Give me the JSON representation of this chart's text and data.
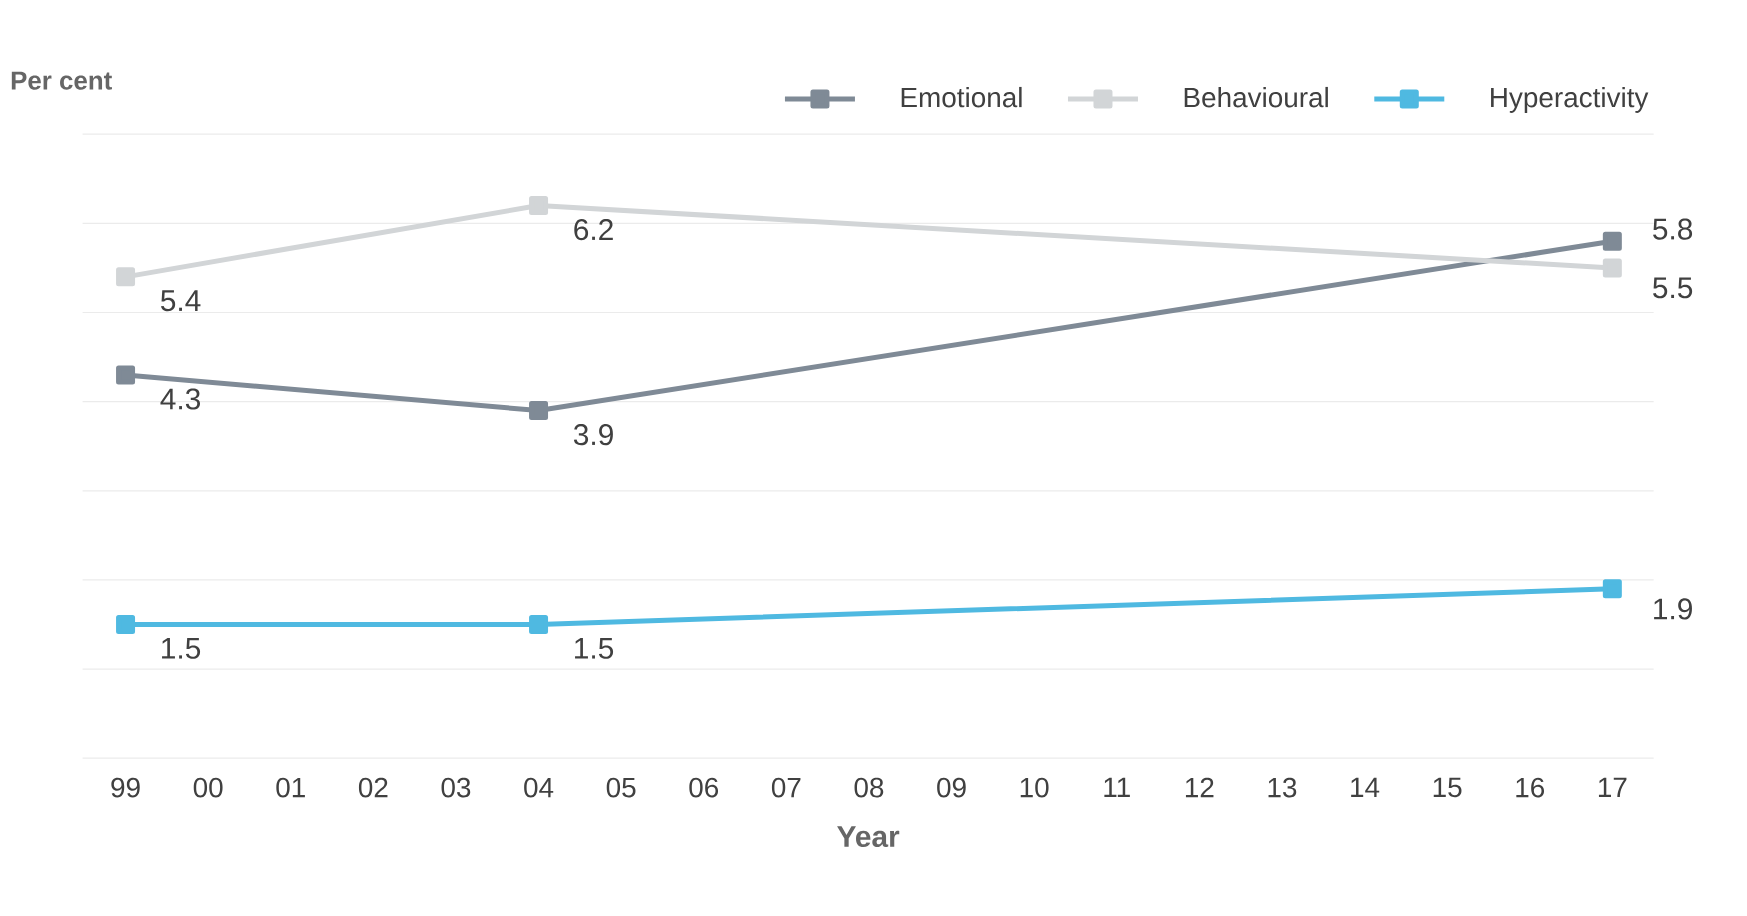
{
  "chart_data": {
    "type": "line",
    "ylabel": "Per cent",
    "xlabel": "Year",
    "categories": [
      "99",
      "00",
      "01",
      "02",
      "03",
      "04",
      "05",
      "06",
      "07",
      "08",
      "09",
      "10",
      "11",
      "12",
      "13",
      "14",
      "15",
      "16",
      "17"
    ],
    "series": [
      {
        "name": "Emotional",
        "color": "#7f8a96",
        "values": [
          4.3,
          null,
          null,
          null,
          null,
          3.9,
          null,
          null,
          null,
          null,
          null,
          null,
          null,
          null,
          null,
          null,
          null,
          null,
          5.8
        ]
      },
      {
        "name": "Behavioural",
        "color": "#d2d5d7",
        "values": [
          5.4,
          null,
          null,
          null,
          null,
          6.2,
          null,
          null,
          null,
          null,
          null,
          null,
          null,
          null,
          null,
          null,
          null,
          null,
          5.5
        ]
      },
      {
        "name": "Hyperactivity",
        "color": "#4fb9e1",
        "values": [
          1.5,
          null,
          null,
          null,
          null,
          1.5,
          null,
          null,
          null,
          null,
          null,
          null,
          null,
          null,
          null,
          null,
          null,
          null,
          1.9
        ]
      }
    ],
    "ylim": [
      0,
      7
    ],
    "yticks": [
      {
        "value": 0,
        "label": null
      },
      {
        "value": 1,
        "label": null
      },
      {
        "value": 2,
        "label": null
      },
      {
        "value": 3,
        "label": null
      },
      {
        "value": 4,
        "label": null
      },
      {
        "value": 5,
        "label": null
      },
      {
        "value": 6,
        "label": null
      },
      {
        "value": 7,
        "label": null
      }
    ],
    "tick_labels": "x",
    "grid": "y",
    "legend": "top right",
    "marker": "square",
    "line_style": "solid",
    "data_labels": true
  }
}
